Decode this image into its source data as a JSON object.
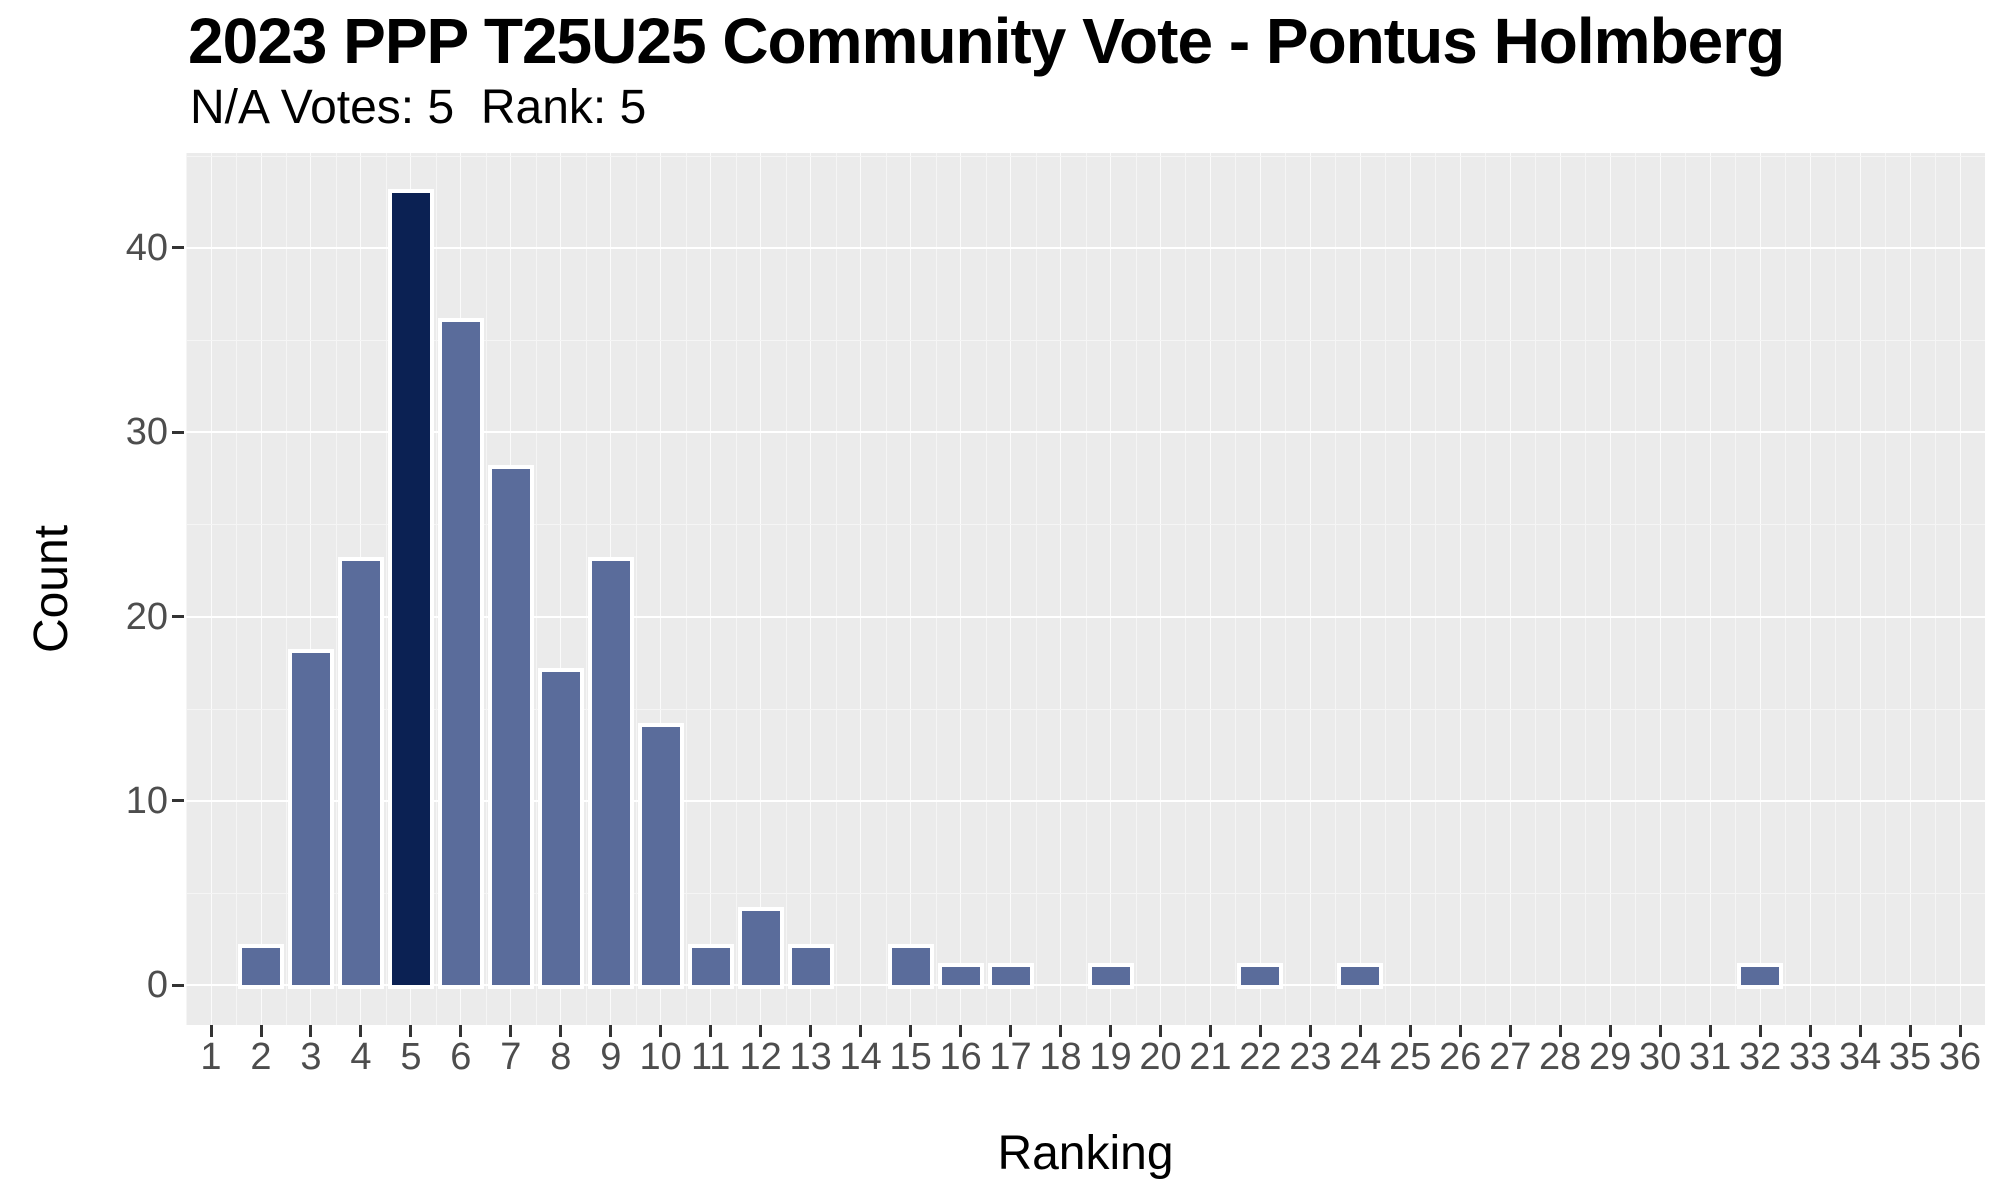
{
  "header": {
    "title": "2023 PPP T25U25 Community Vote - Pontus Holmberg",
    "subtitle": "N/A Votes: 5  Rank: 5",
    "na_votes": 5,
    "rank": 5
  },
  "chart_data": {
    "type": "bar",
    "title": "2023 PPP T25U25 Community Vote - Pontus Holmberg",
    "subtitle": "N/A Votes: 5  Rank: 5",
    "xlabel": "Ranking",
    "ylabel": "Count",
    "categories": [
      1,
      2,
      3,
      4,
      5,
      6,
      7,
      8,
      9,
      10,
      11,
      12,
      13,
      14,
      15,
      16,
      17,
      18,
      19,
      20,
      21,
      22,
      23,
      24,
      25,
      26,
      27,
      28,
      29,
      30,
      31,
      32,
      33,
      34,
      35,
      36
    ],
    "values": [
      0,
      2,
      18,
      23,
      43,
      36,
      28,
      17,
      23,
      14,
      2,
      4,
      2,
      0,
      2,
      1,
      1,
      0,
      1,
      0,
      0,
      1,
      0,
      1,
      0,
      0,
      0,
      0,
      0,
      0,
      0,
      1,
      0,
      0,
      0,
      0
    ],
    "highlighted_category": 5,
    "yticks": [
      0,
      10,
      20,
      30,
      40
    ],
    "yticks_minor": [
      5,
      15,
      25,
      35,
      45
    ],
    "ylim": [
      0,
      45.15
    ],
    "grid": true,
    "legend": "none",
    "colors": {
      "bar": "#5a6c9b",
      "highlight": "#0b2153",
      "bar_stroke": "#ffffff",
      "panel_bg": "#ebebeb",
      "grid_major": "#ffffff",
      "grid_minor": "#f5f5f5",
      "tick_text": "#4d4d4d",
      "tick_mark": "#333333",
      "text": "#000000"
    }
  }
}
